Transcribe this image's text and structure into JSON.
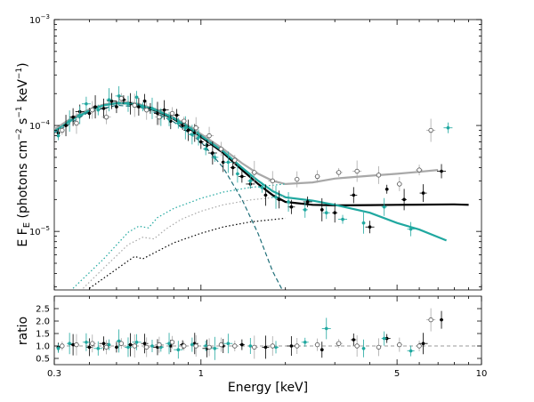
{
  "chart_data": [
    {
      "type": "scatter",
      "panel": "spectrum",
      "xlabel": "Energy [keV]",
      "ylabel_main": "E F",
      "ylabel_sub": "E",
      "ylabel_rest": " (photons cm",
      "ylabel_exp1": "−2",
      "ylabel_mid": " s",
      "ylabel_exp2": "−1",
      "ylabel_unit": " keV",
      "ylabel_exp3": "−1",
      "ylabel_end": ")",
      "x_scale": "log",
      "y_scale": "log",
      "xlim": [
        0.3,
        10
      ],
      "ylim": [
        2.8e-06,
        0.001
      ],
      "x_ticks": [
        {
          "value": 0.3,
          "label": "0.3"
        },
        {
          "value": 1,
          "label": "1"
        },
        {
          "value": 5,
          "label": "5"
        },
        {
          "value": 10,
          "label": "10"
        }
      ],
      "y_ticks": [
        {
          "value": 1e-05,
          "base": "10",
          "exp": "−5"
        },
        {
          "value": 0.0001,
          "base": "10",
          "exp": "−4"
        },
        {
          "value": 0.001,
          "base": "10",
          "exp": "−3"
        }
      ],
      "colors": {
        "black": "#000000",
        "teal": "#20a8a0",
        "gray": "#a8a8a8",
        "dark_teal": "#1e6e78"
      },
      "series": [
        {
          "color": "black",
          "style": "model-line",
          "x": [
            0.3,
            0.35,
            0.4,
            0.45,
            0.5,
            0.55,
            0.6,
            0.7,
            0.8,
            0.9,
            1.0,
            1.2,
            1.4,
            1.6,
            1.8,
            2.0,
            2.5,
            3.0,
            4.0,
            5.0,
            6.0,
            8.0,
            9.0
          ],
          "y": [
            9e-05,
            0.000118,
            0.00014,
            0.000156,
            0.000162,
            0.000162,
            0.000156,
            0.000136,
            0.000115,
            9.5e-05,
            7.8e-05,
            5.5e-05,
            3.8e-05,
            2.8e-05,
            2.2e-05,
            1.9e-05,
            1.78e-05,
            1.76e-05,
            1.77e-05,
            1.78e-05,
            1.79e-05,
            1.8e-05,
            1.78e-05
          ]
        },
        {
          "color": "gray",
          "style": "model-line",
          "x": [
            0.3,
            0.35,
            0.4,
            0.45,
            0.5,
            0.55,
            0.6,
            0.7,
            0.8,
            0.9,
            1.0,
            1.2,
            1.4,
            1.6,
            1.8,
            2.0,
            2.5,
            3.0,
            4.0,
            5.0,
            6.0,
            7.0
          ],
          "y": [
            9.2e-05,
            0.00012,
            0.000142,
            0.000158,
            0.000165,
            0.000166,
            0.00016,
            0.00014,
            0.000119,
            0.0001,
            8.3e-05,
            6e-05,
            4.4e-05,
            3.5e-05,
            3e-05,
            2.8e-05,
            2.9e-05,
            3.15e-05,
            3.35e-05,
            3.5e-05,
            3.65e-05,
            3.8e-05
          ]
        },
        {
          "color": "teal",
          "style": "model-line",
          "x": [
            0.3,
            0.35,
            0.4,
            0.45,
            0.5,
            0.55,
            0.6,
            0.7,
            0.8,
            0.9,
            1.0,
            1.2,
            1.4,
            1.6,
            1.8,
            2.0,
            2.5,
            3.0,
            4.0,
            5.0,
            6.0,
            7.5
          ],
          "y": [
            8.8e-05,
            0.000115,
            0.000138,
            0.000155,
            0.000162,
            0.000162,
            0.000157,
            0.000138,
            0.000117,
            9.7e-05,
            8e-05,
            5.7e-05,
            4e-05,
            3e-05,
            2.4e-05,
            2.1e-05,
            1.95e-05,
            1.78e-05,
            1.5e-05,
            1.2e-05,
            1.04e-05,
            8.2e-06
          ]
        },
        {
          "color": "dark_teal",
          "style": "component-dashed",
          "x": [
            0.3,
            0.4,
            0.5,
            0.6,
            0.7,
            0.8,
            1.0,
            1.2,
            1.4,
            1.6,
            1.8,
            1.95
          ],
          "y": [
            8.5e-05,
            0.000135,
            0.000155,
            0.00015,
            0.00013,
            0.000108,
            7e-05,
            4e-05,
            2e-05,
            9.5e-06,
            4.2e-06,
            2.8e-06
          ]
        },
        {
          "color": "teal",
          "style": "component-dotted",
          "x": [
            0.35,
            0.45,
            0.55,
            0.6,
            0.65,
            0.7,
            0.8,
            1.0,
            1.2,
            1.5,
            2.0
          ],
          "y": [
            2.9e-06,
            5.5e-06,
            9.8e-06,
            1.12e-05,
            1.08e-05,
            1.35e-05,
            1.65e-05,
            2.05e-05,
            2.35e-05,
            2.6e-05,
            2.8e-05
          ]
        },
        {
          "color": "gray",
          "style": "component-dotted",
          "x": [
            0.38,
            0.45,
            0.55,
            0.62,
            0.68,
            0.75,
            0.85,
            1.0,
            1.2,
            1.5,
            2.0
          ],
          "y": [
            2.9e-06,
            4.5e-06,
            7.5e-06,
            8.8e-06,
            8.5e-06,
            1.05e-05,
            1.3e-05,
            1.55e-05,
            1.78e-05,
            1.98e-05,
            2.15e-05
          ]
        },
        {
          "color": "black",
          "style": "component-dotted",
          "x": [
            0.4,
            0.5,
            0.58,
            0.62,
            0.7,
            0.8,
            1.0,
            1.2,
            1.5,
            2.0
          ],
          "y": [
            2.9e-06,
            4.4e-06,
            5.8e-06,
            5.5e-06,
            6.5e-06,
            7.8e-06,
            9.6e-06,
            1.1e-05,
            1.23e-05,
            1.33e-05
          ]
        },
        {
          "color": "black",
          "style": "points",
          "x": [
            0.31,
            0.33,
            0.35,
            0.37,
            0.4,
            0.42,
            0.45,
            0.48,
            0.5,
            0.53,
            0.56,
            0.6,
            0.63,
            0.66,
            0.7,
            0.74,
            0.78,
            0.82,
            0.86,
            0.9,
            0.95,
            1.0,
            1.05,
            1.1,
            1.2,
            1.3,
            1.4,
            1.5,
            1.7,
            1.9,
            2.1,
            2.4,
            2.7,
            3.0,
            3.5,
            4.0,
            4.6,
            5.3,
            6.2,
            7.2
          ],
          "y": [
            8.5e-05,
            0.0001,
            0.00012,
            0.000135,
            0.00013,
            0.00015,
            0.000145,
            0.00017,
            0.00015,
            0.000175,
            0.00016,
            0.00015,
            0.00017,
            0.000145,
            0.00013,
            0.00014,
            0.00011,
            0.000125,
            0.0001,
            9e-05,
            8.5e-05,
            7e-05,
            6.5e-05,
            5.5e-05,
            4.5e-05,
            4e-05,
            3.3e-05,
            2.8e-05,
            2.2e-05,
            2e-05,
            1.7e-05,
            1.9e-05,
            1.6e-05,
            1.5e-05,
            2.2e-05,
            1.1e-05,
            2.5e-05,
            2e-05,
            2.3e-05,
            3.7e-05
          ]
        },
        {
          "color": "teal",
          "style": "points",
          "x": [
            0.31,
            0.34,
            0.37,
            0.39,
            0.43,
            0.47,
            0.51,
            0.55,
            0.59,
            0.62,
            0.67,
            0.72,
            0.77,
            0.83,
            0.88,
            0.93,
            0.98,
            1.04,
            1.12,
            1.25,
            1.35,
            1.5,
            1.65,
            1.85,
            2.05,
            2.35,
            2.8,
            3.2,
            3.8,
            4.5,
            5.6,
            7.6
          ],
          "y": [
            8e-05,
            0.00011,
            0.000125,
            0.00016,
            0.00014,
            0.000175,
            0.00019,
            0.00016,
            0.000185,
            0.00015,
            0.000145,
            0.00012,
            0.000115,
            0.000105,
            9.5e-05,
            8.2e-05,
            7.7e-05,
            6e-05,
            5e-05,
            4.5e-05,
            3.5e-05,
            3e-05,
            2.6e-05,
            2.1e-05,
            1.9e-05,
            1.6e-05,
            1.5e-05,
            1.3e-05,
            1.2e-05,
            1.7e-05,
            1.05e-05,
            9.5e-05
          ]
        },
        {
          "color": "gray",
          "style": "open-points",
          "x": [
            0.32,
            0.36,
            0.41,
            0.46,
            0.52,
            0.58,
            0.64,
            0.71,
            0.79,
            0.87,
            0.96,
            1.07,
            1.18,
            1.32,
            1.55,
            1.8,
            2.2,
            2.6,
            3.1,
            3.6,
            4.3,
            5.1,
            6.0,
            6.6
          ],
          "y": [
            9e-05,
            0.000105,
            0.00014,
            0.00012,
            0.00018,
            0.000155,
            0.00014,
            0.00012,
            0.00013,
            0.00011,
            9.5e-05,
            8e-05,
            6e-05,
            4.7e-05,
            3.6e-05,
            3e-05,
            3.1e-05,
            3.3e-05,
            3.6e-05,
            3.7e-05,
            3.4e-05,
            2.8e-05,
            3.8e-05,
            9e-05
          ]
        }
      ]
    },
    {
      "type": "scatter",
      "panel": "ratio",
      "ylabel": "ratio",
      "x_scale": "log",
      "xlim": [
        0.3,
        10
      ],
      "ylim": [
        0.25,
        3.0
      ],
      "reference_line": 1.0,
      "y_ticks": [
        {
          "value": 0.5,
          "label": "0.5"
        },
        {
          "value": 1.0,
          "label": "1.0"
        },
        {
          "value": 1.5,
          "label": "1.5"
        },
        {
          "value": 2.0,
          "label": "2.0"
        },
        {
          "value": 2.5,
          "label": "2.5"
        }
      ],
      "series": [
        {
          "color": "black",
          "style": "points",
          "x": [
            0.31,
            0.35,
            0.4,
            0.45,
            0.5,
            0.56,
            0.63,
            0.7,
            0.78,
            0.86,
            0.95,
            1.05,
            1.2,
            1.4,
            1.7,
            2.1,
            2.7,
            3.5,
            4.6,
            6.2,
            7.2
          ],
          "y": [
            0.95,
            1.05,
            0.95,
            1.1,
            0.95,
            1.05,
            1.1,
            0.95,
            1.0,
            1.05,
            1.1,
            0.9,
            1.0,
            1.05,
            0.95,
            1.0,
            0.85,
            1.25,
            1.3,
            1.1,
            2.05
          ]
        },
        {
          "color": "teal",
          "style": "points",
          "x": [
            0.31,
            0.34,
            0.39,
            0.43,
            0.47,
            0.51,
            0.55,
            0.59,
            0.67,
            0.72,
            0.77,
            0.83,
            0.93,
            1.04,
            1.12,
            1.25,
            1.5,
            1.85,
            2.35,
            2.8,
            3.8,
            4.5,
            5.6
          ],
          "y": [
            0.9,
            1.1,
            1.15,
            0.9,
            1.05,
            1.2,
            0.95,
            1.15,
            1.0,
            0.95,
            1.1,
            0.85,
            1.05,
            1.0,
            0.9,
            1.1,
            1.0,
            0.95,
            1.15,
            1.7,
            0.9,
            1.3,
            0.8
          ]
        },
        {
          "color": "gray",
          "style": "open-points",
          "x": [
            0.32,
            0.36,
            0.41,
            0.46,
            0.52,
            0.58,
            0.64,
            0.71,
            0.79,
            0.87,
            0.96,
            1.07,
            1.18,
            1.32,
            1.55,
            1.8,
            2.2,
            2.6,
            3.1,
            3.6,
            4.3,
            5.1,
            6.0,
            6.6
          ],
          "y": [
            1.0,
            1.05,
            1.1,
            0.95,
            1.1,
            1.0,
            0.95,
            1.05,
            1.15,
            1.0,
            1.0,
            0.95,
            1.05,
            1.0,
            0.95,
            1.0,
            1.0,
            1.05,
            1.1,
            1.0,
            0.95,
            1.05,
            1.0,
            2.05
          ]
        }
      ]
    }
  ]
}
